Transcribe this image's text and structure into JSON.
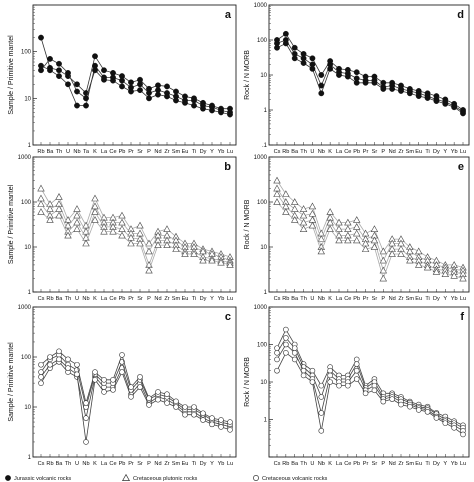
{
  "chart_data": [
    {
      "panel": "a",
      "type": "line",
      "ylabel": "Sample / Primitive mantel",
      "yscale": "log",
      "ylim": [
        1,
        1000
      ],
      "yticks": [
        "1",
        "10",
        "100"
      ],
      "xticks": [
        "Rb",
        "Ba",
        "Th",
        "U",
        "Nb",
        "Ta",
        "K",
        "La",
        "Ce",
        "Pb",
        "Pr",
        "Sr",
        "P",
        "Nd",
        "Zr",
        "Sm",
        "Eu",
        "Ti",
        "Dy",
        "Y",
        "Yb",
        "Lu"
      ],
      "marker": "filled-circle",
      "line_color": "#333333",
      "series": [
        {
          "values": [
            200,
            45,
            40,
            30,
            20,
            13,
            80,
            40,
            35,
            30,
            22,
            25,
            16,
            19,
            18,
            14,
            11,
            10,
            8,
            7,
            6,
            6
          ]
        },
        {
          "values": [
            50,
            40,
            30,
            20,
            7,
            7,
            50,
            28,
            28,
            24,
            17,
            20,
            13,
            15,
            13,
            11,
            9,
            9,
            7,
            6.5,
            5.5,
            5
          ]
        },
        {
          "values": [
            40,
            70,
            55,
            35,
            14,
            10,
            40,
            25,
            24,
            18,
            14,
            15,
            10,
            12,
            11,
            9,
            8,
            7,
            6,
            5.5,
            5,
            4.5
          ]
        }
      ]
    },
    {
      "panel": "b",
      "type": "line",
      "ylabel": "Sample / Primitive mantel",
      "yscale": "log",
      "ylim": [
        1,
        1000
      ],
      "yticks": [
        "1",
        "10",
        "100",
        "1000"
      ],
      "xticks": [
        "Cs",
        "Rb",
        "Ba",
        "Th",
        "U",
        "Nb",
        "K",
        "La",
        "Ce",
        "Pb",
        "Pr",
        "Sr",
        "P",
        "Nd",
        "Zr",
        "Sm",
        "Eu",
        "Ti",
        "Dy",
        "Y",
        "Yb",
        "Lu"
      ],
      "marker": "open-triangle",
      "line_color": "#aaaaaa",
      "series": [
        {
          "values": [
            200,
            90,
            130,
            40,
            70,
            30,
            120,
            45,
            45,
            50,
            25,
            30,
            12,
            22,
            25,
            17,
            12,
            12,
            9,
            8,
            7,
            6
          ]
        },
        {
          "values": [
            120,
            70,
            90,
            30,
            50,
            22,
            80,
            35,
            35,
            35,
            20,
            20,
            8,
            18,
            18,
            14,
            10,
            10,
            8,
            7,
            6,
            5
          ]
        },
        {
          "values": [
            90,
            50,
            70,
            22,
            35,
            16,
            60,
            28,
            28,
            25,
            16,
            15,
            4,
            14,
            14,
            11,
            8,
            8,
            6,
            5.5,
            5,
            4.5
          ]
        },
        {
          "values": [
            60,
            40,
            50,
            18,
            25,
            12,
            40,
            22,
            22,
            18,
            12,
            12,
            3,
            11,
            11,
            9,
            7,
            7,
            5,
            5,
            4.5,
            4
          ]
        }
      ]
    },
    {
      "panel": "c",
      "type": "line",
      "ylabel": "Sample / Primitive mantel",
      "yscale": "log",
      "ylim": [
        1,
        1000
      ],
      "yticks": [
        "1",
        "10",
        "100",
        "1000"
      ],
      "xticks": [
        "Cs",
        "Rb",
        "Ba",
        "Th",
        "U",
        "Nb",
        "K",
        "La",
        "Ce",
        "Pb",
        "Pr",
        "Sr",
        "P",
        "Nd",
        "Zr",
        "Sm",
        "Eu",
        "Ti",
        "Dy",
        "Y",
        "Yb",
        "Lu"
      ],
      "marker": "open-circle",
      "line_color": "#444444",
      "series": [
        {
          "values": [
            30,
            60,
            80,
            50,
            40,
            6,
            40,
            25,
            25,
            60,
            18,
            30,
            12,
            16,
            14,
            11,
            8,
            8,
            6,
            5,
            4.5,
            4
          ]
        },
        {
          "values": [
            50,
            90,
            110,
            70,
            55,
            10,
            45,
            30,
            30,
            80,
            22,
            35,
            14,
            18,
            16,
            12,
            9,
            9,
            7,
            5.5,
            5,
            4.5
          ]
        },
        {
          "values": [
            70,
            100,
            130,
            90,
            70,
            12,
            50,
            35,
            35,
            110,
            25,
            40,
            15,
            20,
            18,
            13,
            10,
            10,
            7.5,
            6,
            5.5,
            5
          ]
        },
        {
          "values": [
            40,
            70,
            90,
            60,
            45,
            2,
            35,
            20,
            22,
            50,
            16,
            25,
            11,
            14,
            12,
            10,
            7,
            7,
            5.5,
            4.5,
            4,
            3.5
          ]
        }
      ]
    },
    {
      "panel": "d",
      "type": "line",
      "ylabel": "Rock / N MORB",
      "yscale": "log",
      "ylim": [
        0.1,
        1000
      ],
      "yticks": [
        ".1",
        "1",
        "10",
        "100",
        "1000"
      ],
      "xticks": [
        "Cs",
        "Rb",
        "Ba",
        "Th",
        "U",
        "Nb",
        "K",
        "La",
        "Ce",
        "Pb",
        "Pr",
        "Sr",
        "P",
        "Nd",
        "Zr",
        "Sm",
        "Eu",
        "Ti",
        "Dy",
        "Y",
        "Yb",
        "Lu"
      ],
      "marker": "filled-circle",
      "line_color": "#333333",
      "series": [
        {
          "values": [
            100,
            150,
            60,
            40,
            30,
            10,
            25,
            15,
            14,
            12,
            9,
            9,
            6,
            6,
            5,
            4,
            3.5,
            3,
            2.5,
            2,
            1.5,
            1
          ]
        },
        {
          "values": [
            80,
            100,
            40,
            30,
            20,
            5,
            20,
            12,
            11,
            8,
            7,
            7,
            4.5,
            5,
            4,
            3.5,
            3,
            2.5,
            2,
            1.7,
            1.3,
            0.9
          ]
        },
        {
          "values": [
            60,
            80,
            30,
            22,
            15,
            3,
            15,
            10,
            9,
            6,
            6,
            6,
            4,
            4,
            3.5,
            3,
            2.5,
            2.2,
            1.8,
            1.5,
            1.2,
            0.8
          ]
        }
      ]
    },
    {
      "panel": "e",
      "type": "line",
      "ylabel": "Rock / N MORB",
      "yscale": "log",
      "ylim": [
        1,
        1000
      ],
      "yticks": [
        "1",
        "10",
        "100",
        "1000"
      ],
      "xticks": [
        "Cs",
        "Rb",
        "Ba",
        "Th",
        "U",
        "Nb",
        "K",
        "La",
        "Ce",
        "Pb",
        "Pr",
        "Sr",
        "P",
        "Nd",
        "Zr",
        "Sm",
        "Eu",
        "Ti",
        "Dy",
        "Y",
        "Yb",
        "Lu"
      ],
      "marker": "open-triangle",
      "line_color": "#aaaaaa",
      "series": [
        {
          "values": [
            300,
            150,
            100,
            70,
            80,
            20,
            60,
            35,
            35,
            40,
            20,
            25,
            8,
            15,
            15,
            10,
            8,
            6,
            5,
            4,
            4,
            3.5
          ]
        },
        {
          "values": [
            200,
            100,
            70,
            50,
            55,
            15,
            45,
            25,
            25,
            28,
            15,
            18,
            5,
            12,
            12,
            8,
            6,
            5,
            4,
            3.5,
            3.2,
            3
          ]
        },
        {
          "values": [
            150,
            80,
            50,
            35,
            40,
            10,
            35,
            18,
            18,
            20,
            12,
            14,
            3,
            9,
            9,
            6,
            5,
            4,
            3.2,
            3,
            2.8,
            2.5
          ]
        },
        {
          "values": [
            100,
            60,
            40,
            25,
            30,
            8,
            25,
            14,
            14,
            14,
            9,
            10,
            2,
            7,
            7,
            5,
            4,
            3.5,
            2.8,
            2.5,
            2.3,
            2
          ]
        }
      ]
    },
    {
      "panel": "f",
      "type": "line",
      "ylabel": "Rock / N MORB",
      "yscale": "log",
      "ylim": [
        0.1,
        1000
      ],
      "yticks": [
        "1",
        "10",
        "100",
        "1000"
      ],
      "xticks": [
        "Cs",
        "Rb",
        "Ba",
        "Th",
        "U",
        "Nb",
        "K",
        "La",
        "Ce",
        "Pb",
        "Pr",
        "Sr",
        "P",
        "Nd",
        "Zr",
        "Sm",
        "Eu",
        "Ti",
        "Dy",
        "Y",
        "Yb",
        "Lu"
      ],
      "marker": "open-circle",
      "line_color": "#444444",
      "series": [
        {
          "values": [
            80,
            250,
            100,
            30,
            20,
            8,
            25,
            15,
            15,
            40,
            8,
            12,
            5,
            5,
            4,
            3,
            2.5,
            2.2,
            1.5,
            1.2,
            0.9,
            0.7
          ]
        },
        {
          "values": [
            60,
            150,
            80,
            25,
            15,
            4,
            20,
            12,
            12,
            30,
            7,
            10,
            4,
            4.5,
            3.5,
            2.8,
            2.2,
            2,
            1.4,
            1,
            0.8,
            0.6
          ]
        },
        {
          "values": [
            40,
            100,
            60,
            20,
            12,
            1.5,
            15,
            10,
            10,
            20,
            6,
            8,
            3.5,
            4,
            3,
            2.5,
            2,
            1.8,
            1.2,
            0.9,
            0.7,
            0.5
          ]
        },
        {
          "values": [
            20,
            60,
            40,
            15,
            10,
            0.5,
            10,
            8,
            8,
            12,
            5,
            6,
            3,
            3.5,
            2.5,
            2.2,
            1.8,
            1.6,
            1.1,
            0.8,
            0.6,
            0.4
          ]
        }
      ]
    }
  ],
  "legend": {
    "items": [
      {
        "marker": "filled-circle",
        "label": "Jurassic volcanic rocks"
      },
      {
        "marker": "open-triangle",
        "label": "Cretaceous plutonic rocks"
      },
      {
        "marker": "open-circle",
        "label": "Cretaceous volcanic rocks"
      }
    ]
  }
}
